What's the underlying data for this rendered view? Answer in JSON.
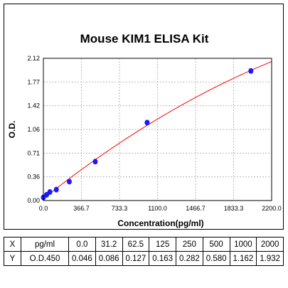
{
  "chart_data": {
    "type": "scatter",
    "title": "Mouse KIM1 ELISA Kit",
    "xlabel": "Concentration(pg/ml)",
    "ylabel": "O.D.",
    "xlim": [
      0.0,
      2200.0
    ],
    "ylim": [
      0.0,
      2.12
    ],
    "x_ticks": [
      "0.0",
      "366.7",
      "733.3",
      "1100.0",
      "1466.7",
      "1833.3",
      "2200.0"
    ],
    "y_ticks": [
      "0.00",
      "0.36",
      "0.71",
      "1.06",
      "1.42",
      "1.77",
      "2.12"
    ],
    "grid": true,
    "series": [
      {
        "x": [
          0,
          31.2,
          62.5,
          125,
          250,
          500,
          1000,
          2000
        ],
        "y": [
          0.046,
          0.086,
          0.127,
          0.163,
          0.282,
          0.58,
          1.162,
          1.932
        ],
        "marker_color": "#1a1aff",
        "fit_line_color": "#ff0000"
      }
    ]
  },
  "table": {
    "rows": [
      [
        "X",
        "pg/ml",
        "0.0",
        "31.2",
        "62.5",
        "125",
        "250",
        "500",
        "1000",
        "2000"
      ],
      [
        "Y",
        "O.D.450",
        "0.046",
        "0.086",
        "0.127",
        "0.163",
        "0.282",
        "0.580",
        "1.162",
        "1.932"
      ]
    ]
  }
}
